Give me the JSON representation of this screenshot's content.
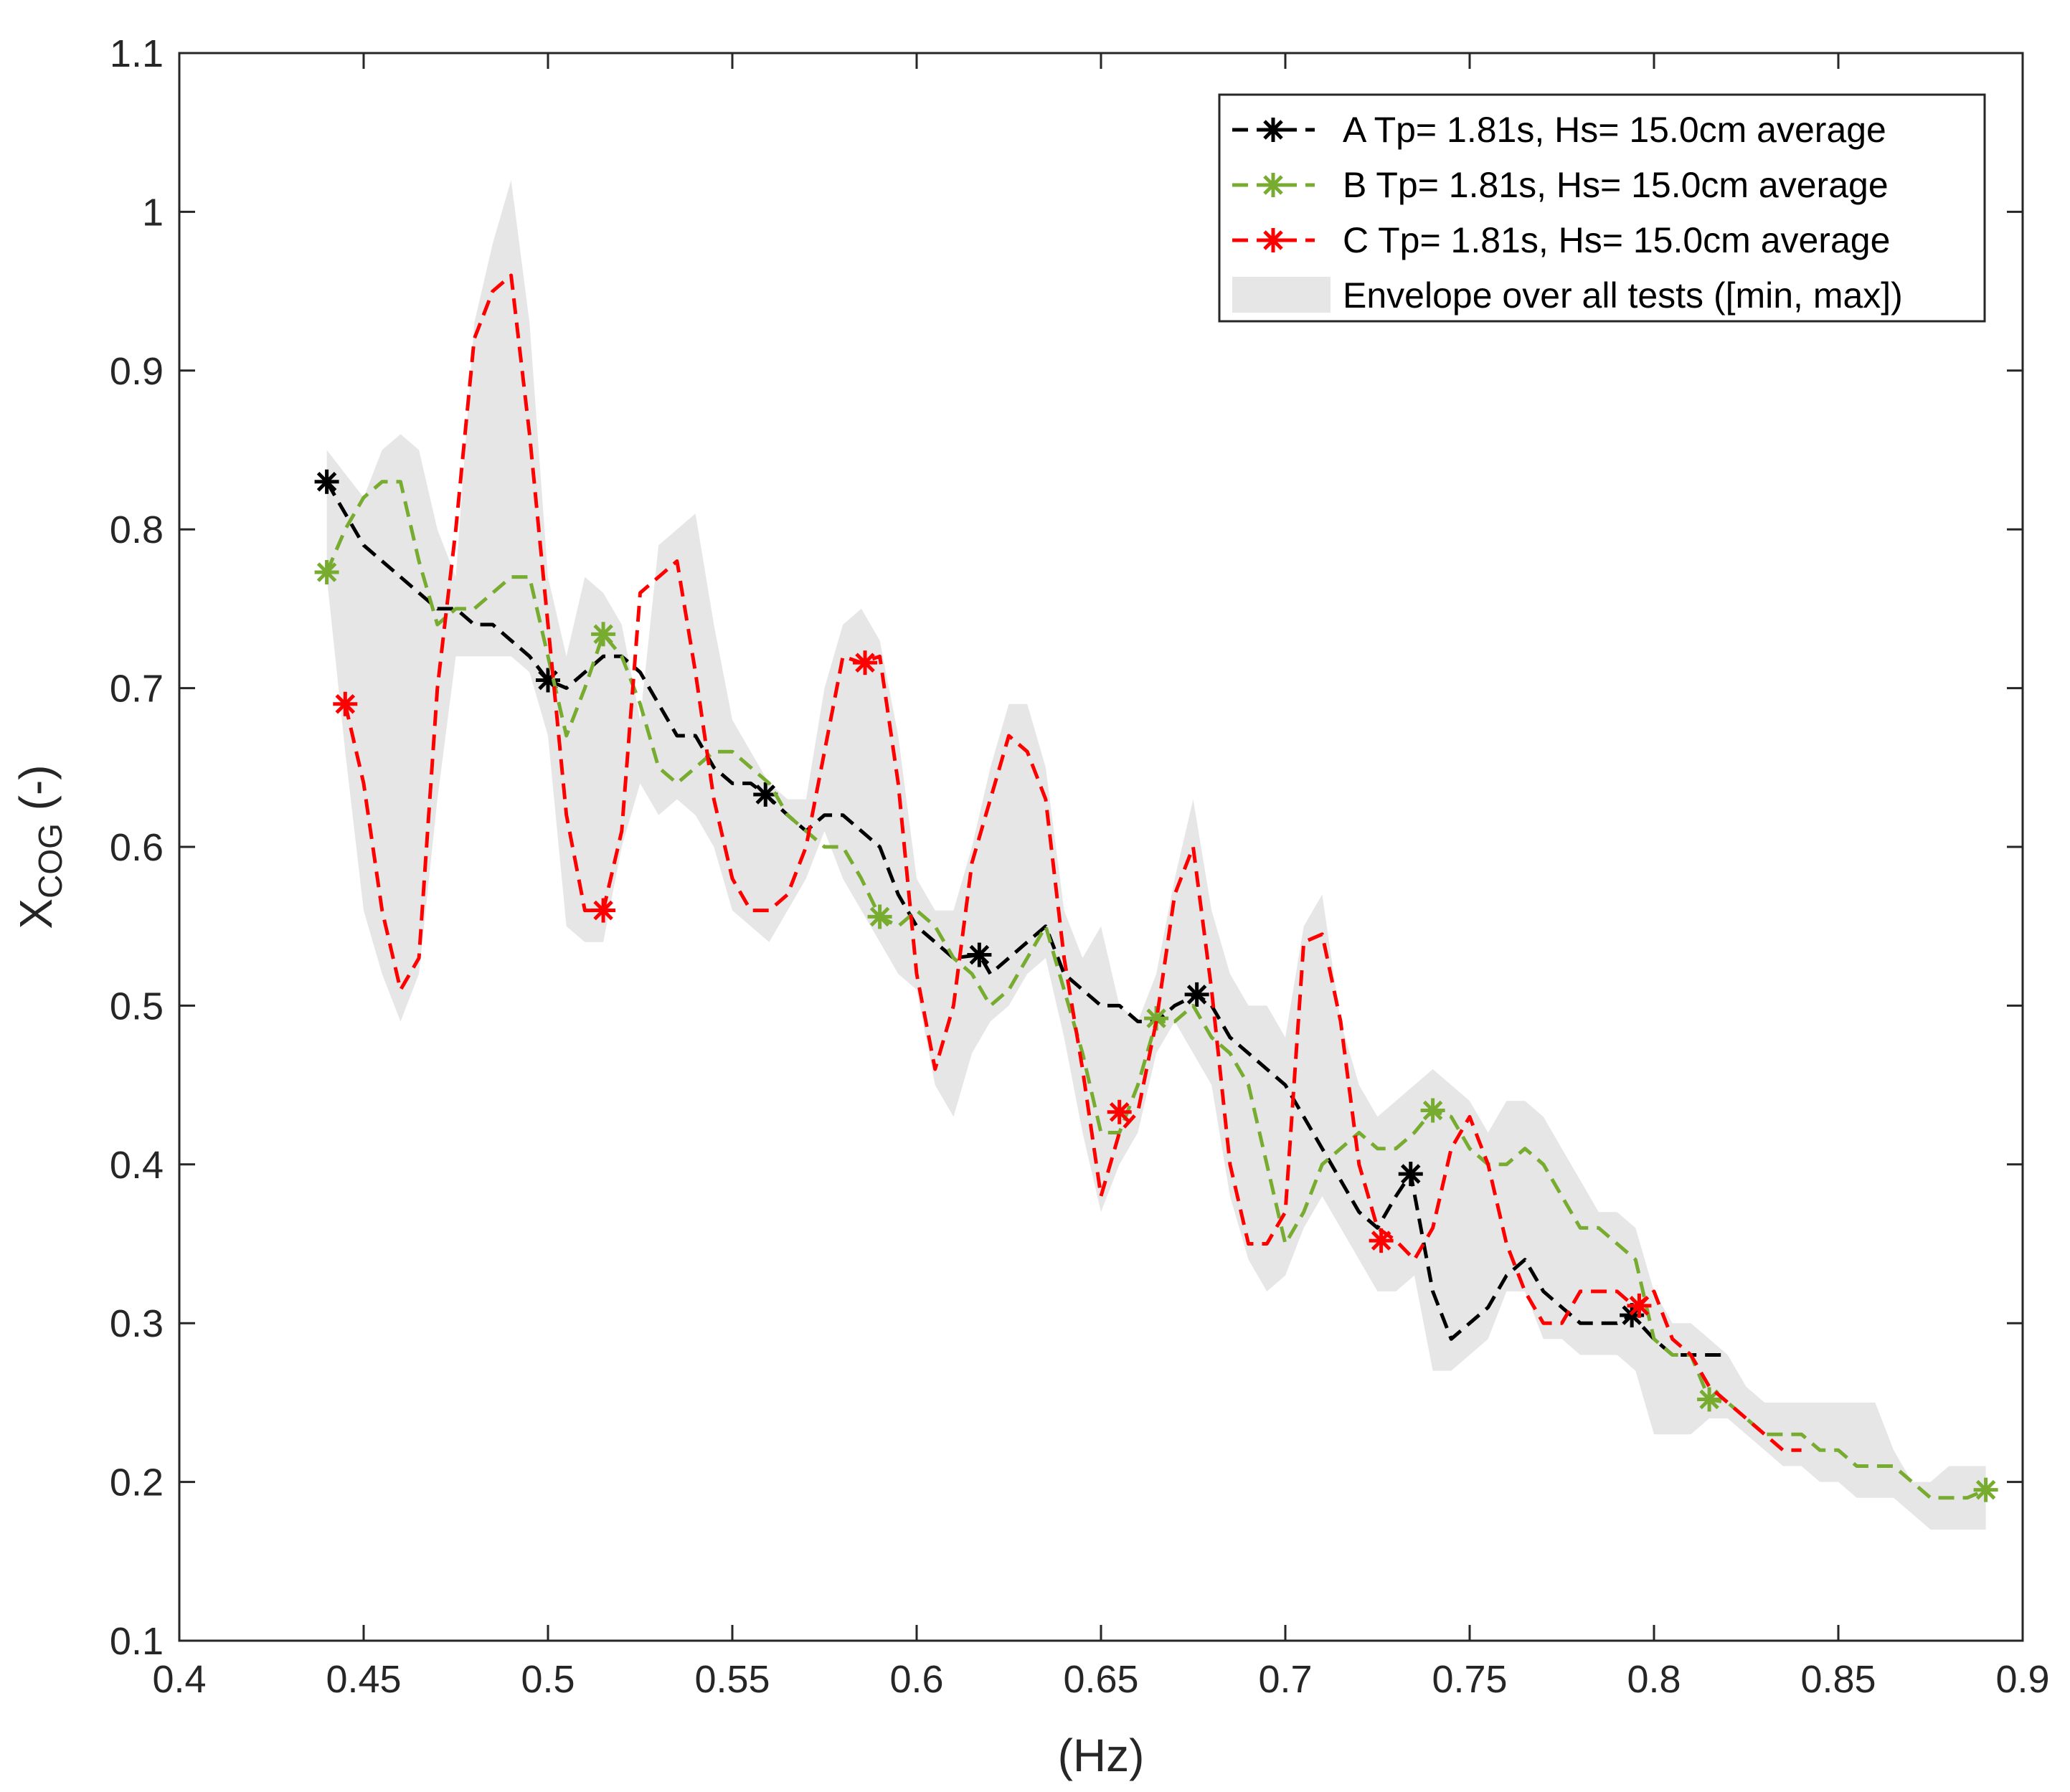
{
  "chart_data": {
    "type": "line",
    "title": "",
    "xlabel": "(Hz)",
    "ylabel_main": "X",
    "ylabel_sub": "COG",
    "ylabel_suffix": " (-)",
    "xlim": [
      0.4,
      0.9
    ],
    "ylim": [
      0.1,
      1.1
    ],
    "xticks": [
      "0.4",
      "0.45",
      "0.5",
      "0.55",
      "0.6",
      "0.65",
      "0.7",
      "0.75",
      "0.8",
      "0.85",
      "0.9"
    ],
    "yticks": [
      "0.1",
      "0.2",
      "0.3",
      "0.4",
      "0.5",
      "0.6",
      "0.7",
      "0.8",
      "0.9",
      "1",
      "1.1"
    ],
    "legend_position": "top-right",
    "envelope": {
      "name": "Envelope over all tests ([min, max])",
      "color": "#e6e6e6",
      "upper": [
        [
          0.44,
          0.85
        ],
        [
          0.45,
          0.82
        ],
        [
          0.455,
          0.85
        ],
        [
          0.46,
          0.86
        ],
        [
          0.465,
          0.85
        ],
        [
          0.47,
          0.8
        ],
        [
          0.475,
          0.77
        ],
        [
          0.48,
          0.93
        ],
        [
          0.485,
          0.98
        ],
        [
          0.49,
          1.02
        ],
        [
          0.495,
          0.93
        ],
        [
          0.5,
          0.77
        ],
        [
          0.505,
          0.72
        ],
        [
          0.51,
          0.77
        ],
        [
          0.515,
          0.76
        ],
        [
          0.52,
          0.74
        ],
        [
          0.525,
          0.68
        ],
        [
          0.53,
          0.79
        ],
        [
          0.535,
          0.8
        ],
        [
          0.54,
          0.81
        ],
        [
          0.545,
          0.74
        ],
        [
          0.55,
          0.68
        ],
        [
          0.555,
          0.66
        ],
        [
          0.56,
          0.64
        ],
        [
          0.565,
          0.63
        ],
        [
          0.57,
          0.63
        ],
        [
          0.575,
          0.7
        ],
        [
          0.58,
          0.74
        ],
        [
          0.585,
          0.75
        ],
        [
          0.59,
          0.73
        ],
        [
          0.595,
          0.67
        ],
        [
          0.6,
          0.58
        ],
        [
          0.605,
          0.56
        ],
        [
          0.61,
          0.56
        ],
        [
          0.615,
          0.6
        ],
        [
          0.62,
          0.65
        ],
        [
          0.625,
          0.69
        ],
        [
          0.63,
          0.69
        ],
        [
          0.635,
          0.65
        ],
        [
          0.64,
          0.56
        ],
        [
          0.645,
          0.53
        ],
        [
          0.65,
          0.55
        ],
        [
          0.655,
          0.5
        ],
        [
          0.66,
          0.49
        ],
        [
          0.665,
          0.52
        ],
        [
          0.67,
          0.58
        ],
        [
          0.675,
          0.63
        ],
        [
          0.68,
          0.56
        ],
        [
          0.685,
          0.52
        ],
        [
          0.69,
          0.5
        ],
        [
          0.695,
          0.5
        ],
        [
          0.7,
          0.48
        ],
        [
          0.705,
          0.55
        ],
        [
          0.71,
          0.57
        ],
        [
          0.715,
          0.49
        ],
        [
          0.72,
          0.45
        ],
        [
          0.725,
          0.43
        ],
        [
          0.73,
          0.44
        ],
        [
          0.735,
          0.45
        ],
        [
          0.74,
          0.46
        ],
        [
          0.745,
          0.45
        ],
        [
          0.75,
          0.44
        ],
        [
          0.755,
          0.42
        ],
        [
          0.76,
          0.44
        ],
        [
          0.765,
          0.44
        ],
        [
          0.77,
          0.43
        ],
        [
          0.775,
          0.41
        ],
        [
          0.78,
          0.39
        ],
        [
          0.785,
          0.37
        ],
        [
          0.79,
          0.37
        ],
        [
          0.795,
          0.36
        ],
        [
          0.8,
          0.32
        ],
        [
          0.805,
          0.3
        ],
        [
          0.81,
          0.3
        ],
        [
          0.815,
          0.29
        ],
        [
          0.82,
          0.28
        ],
        [
          0.825,
          0.26
        ],
        [
          0.83,
          0.25
        ],
        [
          0.835,
          0.25
        ],
        [
          0.84,
          0.25
        ],
        [
          0.845,
          0.25
        ],
        [
          0.85,
          0.25
        ],
        [
          0.855,
          0.25
        ],
        [
          0.86,
          0.25
        ],
        [
          0.865,
          0.22
        ],
        [
          0.87,
          0.2
        ],
        [
          0.875,
          0.2
        ],
        [
          0.88,
          0.21
        ],
        [
          0.885,
          0.21
        ],
        [
          0.89,
          0.21
        ]
      ],
      "lower": [
        [
          0.44,
          0.77
        ],
        [
          0.445,
          0.66
        ],
        [
          0.45,
          0.56
        ],
        [
          0.455,
          0.52
        ],
        [
          0.46,
          0.49
        ],
        [
          0.465,
          0.52
        ],
        [
          0.47,
          0.63
        ],
        [
          0.475,
          0.72
        ],
        [
          0.48,
          0.72
        ],
        [
          0.485,
          0.72
        ],
        [
          0.49,
          0.72
        ],
        [
          0.495,
          0.71
        ],
        [
          0.5,
          0.67
        ],
        [
          0.505,
          0.55
        ],
        [
          0.51,
          0.54
        ],
        [
          0.515,
          0.54
        ],
        [
          0.52,
          0.6
        ],
        [
          0.525,
          0.64
        ],
        [
          0.53,
          0.62
        ],
        [
          0.535,
          0.63
        ],
        [
          0.54,
          0.62
        ],
        [
          0.545,
          0.6
        ],
        [
          0.55,
          0.56
        ],
        [
          0.555,
          0.55
        ],
        [
          0.56,
          0.54
        ],
        [
          0.565,
          0.56
        ],
        [
          0.57,
          0.58
        ],
        [
          0.575,
          0.61
        ],
        [
          0.58,
          0.58
        ],
        [
          0.585,
          0.56
        ],
        [
          0.59,
          0.54
        ],
        [
          0.595,
          0.52
        ],
        [
          0.6,
          0.51
        ],
        [
          0.605,
          0.45
        ],
        [
          0.61,
          0.43
        ],
        [
          0.615,
          0.47
        ],
        [
          0.62,
          0.49
        ],
        [
          0.625,
          0.5
        ],
        [
          0.63,
          0.52
        ],
        [
          0.635,
          0.53
        ],
        [
          0.64,
          0.48
        ],
        [
          0.645,
          0.42
        ],
        [
          0.65,
          0.37
        ],
        [
          0.655,
          0.4
        ],
        [
          0.66,
          0.42
        ],
        [
          0.665,
          0.47
        ],
        [
          0.67,
          0.49
        ],
        [
          0.675,
          0.47
        ],
        [
          0.68,
          0.45
        ],
        [
          0.685,
          0.38
        ],
        [
          0.69,
          0.34
        ],
        [
          0.695,
          0.32
        ],
        [
          0.7,
          0.33
        ],
        [
          0.705,
          0.36
        ],
        [
          0.71,
          0.38
        ],
        [
          0.715,
          0.36
        ],
        [
          0.72,
          0.34
        ],
        [
          0.725,
          0.32
        ],
        [
          0.73,
          0.32
        ],
        [
          0.735,
          0.33
        ],
        [
          0.74,
          0.27
        ],
        [
          0.745,
          0.27
        ],
        [
          0.75,
          0.28
        ],
        [
          0.755,
          0.29
        ],
        [
          0.76,
          0.32
        ],
        [
          0.765,
          0.32
        ],
        [
          0.77,
          0.29
        ],
        [
          0.775,
          0.29
        ],
        [
          0.78,
          0.28
        ],
        [
          0.785,
          0.28
        ],
        [
          0.79,
          0.28
        ],
        [
          0.795,
          0.27
        ],
        [
          0.8,
          0.23
        ],
        [
          0.805,
          0.23
        ],
        [
          0.81,
          0.23
        ],
        [
          0.815,
          0.24
        ],
        [
          0.82,
          0.24
        ],
        [
          0.825,
          0.23
        ],
        [
          0.83,
          0.22
        ],
        [
          0.835,
          0.21
        ],
        [
          0.84,
          0.21
        ],
        [
          0.845,
          0.2
        ],
        [
          0.85,
          0.2
        ],
        [
          0.855,
          0.19
        ],
        [
          0.86,
          0.19
        ],
        [
          0.865,
          0.19
        ],
        [
          0.87,
          0.18
        ],
        [
          0.875,
          0.17
        ],
        [
          0.88,
          0.17
        ],
        [
          0.885,
          0.17
        ],
        [
          0.89,
          0.17
        ]
      ]
    },
    "series": [
      {
        "name": "A Tp= 1.81s, Hs= 15.0cm average",
        "color": "#000000",
        "x": [
          0.44,
          0.445,
          0.45,
          0.455,
          0.46,
          0.465,
          0.47,
          0.475,
          0.48,
          0.485,
          0.49,
          0.495,
          0.5,
          0.505,
          0.51,
          0.515,
          0.52,
          0.525,
          0.53,
          0.535,
          0.54,
          0.545,
          0.55,
          0.555,
          0.559,
          0.565,
          0.57,
          0.575,
          0.58,
          0.585,
          0.59,
          0.595,
          0.6,
          0.605,
          0.61,
          0.617,
          0.62,
          0.625,
          0.63,
          0.635,
          0.64,
          0.645,
          0.65,
          0.655,
          0.66,
          0.665,
          0.67,
          0.676,
          0.68,
          0.685,
          0.69,
          0.695,
          0.7,
          0.705,
          0.71,
          0.715,
          0.72,
          0.725,
          0.73,
          0.734,
          0.74,
          0.745,
          0.75,
          0.755,
          0.76,
          0.765,
          0.77,
          0.775,
          0.78,
          0.785,
          0.79,
          0.794,
          0.8,
          0.805,
          0.81,
          0.815,
          0.82
        ],
        "y": [
          0.83,
          0.81,
          0.79,
          0.78,
          0.77,
          0.76,
          0.75,
          0.75,
          0.74,
          0.74,
          0.73,
          0.72,
          0.705,
          0.7,
          0.71,
          0.72,
          0.72,
          0.71,
          0.69,
          0.67,
          0.67,
          0.65,
          0.64,
          0.64,
          0.633,
          0.62,
          0.61,
          0.62,
          0.62,
          0.61,
          0.6,
          0.57,
          0.55,
          0.54,
          0.53,
          0.532,
          0.52,
          0.53,
          0.54,
          0.55,
          0.52,
          0.51,
          0.5,
          0.5,
          0.49,
          0.49,
          0.5,
          0.507,
          0.5,
          0.48,
          0.47,
          0.46,
          0.45,
          0.43,
          0.41,
          0.39,
          0.37,
          0.36,
          0.38,
          0.394,
          0.32,
          0.29,
          0.3,
          0.31,
          0.33,
          0.34,
          0.32,
          0.31,
          0.3,
          0.3,
          0.3,
          0.305,
          0.29,
          0.28,
          0.28,
          0.28,
          0.28
        ],
        "markers_x": [
          0.44,
          0.5,
          0.559,
          0.617,
          0.676,
          0.734,
          0.794
        ],
        "markers_y": [
          0.83,
          0.705,
          0.633,
          0.532,
          0.507,
          0.394,
          0.305
        ]
      },
      {
        "name": "B Tp= 1.81s, Hs= 15.0cm average",
        "color": "#77ac30",
        "x": [
          0.44,
          0.445,
          0.45,
          0.455,
          0.46,
          0.465,
          0.47,
          0.475,
          0.48,
          0.485,
          0.49,
          0.495,
          0.5,
          0.505,
          0.51,
          0.515,
          0.52,
          0.525,
          0.53,
          0.535,
          0.54,
          0.545,
          0.55,
          0.555,
          0.56,
          0.565,
          0.57,
          0.575,
          0.58,
          0.585,
          0.59,
          0.595,
          0.6,
          0.605,
          0.61,
          0.615,
          0.62,
          0.625,
          0.63,
          0.635,
          0.64,
          0.645,
          0.65,
          0.655,
          0.66,
          0.665,
          0.67,
          0.675,
          0.68,
          0.685,
          0.69,
          0.695,
          0.7,
          0.705,
          0.71,
          0.715,
          0.72,
          0.725,
          0.73,
          0.735,
          0.74,
          0.745,
          0.75,
          0.755,
          0.76,
          0.765,
          0.77,
          0.775,
          0.78,
          0.785,
          0.79,
          0.795,
          0.8,
          0.805,
          0.81,
          0.815,
          0.82,
          0.825,
          0.83,
          0.835,
          0.84,
          0.845,
          0.85,
          0.855,
          0.86,
          0.865,
          0.87,
          0.875,
          0.88,
          0.885,
          0.89
        ],
        "y": [
          0.773,
          0.8,
          0.82,
          0.83,
          0.83,
          0.78,
          0.74,
          0.75,
          0.75,
          0.76,
          0.77,
          0.77,
          0.72,
          0.67,
          0.7,
          0.734,
          0.72,
          0.69,
          0.65,
          0.64,
          0.65,
          0.66,
          0.66,
          0.65,
          0.64,
          0.62,
          0.61,
          0.6,
          0.6,
          0.58,
          0.556,
          0.55,
          0.56,
          0.55,
          0.53,
          0.52,
          0.5,
          0.51,
          0.53,
          0.55,
          0.51,
          0.47,
          0.42,
          0.42,
          0.45,
          0.49,
          0.49,
          0.5,
          0.48,
          0.47,
          0.45,
          0.4,
          0.35,
          0.37,
          0.4,
          0.41,
          0.42,
          0.41,
          0.41,
          0.42,
          0.434,
          0.43,
          0.41,
          0.4,
          0.4,
          0.41,
          0.4,
          0.38,
          0.36,
          0.36,
          0.35,
          0.34,
          0.29,
          0.28,
          0.28,
          0.252,
          0.25,
          0.24,
          0.23,
          0.23,
          0.23,
          0.22,
          0.22,
          0.21,
          0.21,
          0.21,
          0.2,
          0.19,
          0.19,
          0.19,
          0.195
        ],
        "markers_x": [
          0.44,
          0.515,
          0.59,
          0.665,
          0.74,
          0.815,
          0.89
        ],
        "markers_y": [
          0.773,
          0.734,
          0.556,
          0.492,
          0.434,
          0.252,
          0.195
        ]
      },
      {
        "name": "C Tp= 1.81s, Hs= 15.0cm average",
        "color": "#ff0000",
        "x": [
          0.445,
          0.45,
          0.455,
          0.46,
          0.465,
          0.47,
          0.475,
          0.48,
          0.485,
          0.49,
          0.495,
          0.5,
          0.505,
          0.51,
          0.515,
          0.52,
          0.525,
          0.53,
          0.535,
          0.54,
          0.545,
          0.55,
          0.555,
          0.56,
          0.565,
          0.57,
          0.575,
          0.58,
          0.585,
          0.59,
          0.595,
          0.6,
          0.605,
          0.61,
          0.615,
          0.62,
          0.625,
          0.63,
          0.635,
          0.64,
          0.645,
          0.65,
          0.655,
          0.66,
          0.665,
          0.67,
          0.675,
          0.68,
          0.685,
          0.69,
          0.695,
          0.7,
          0.705,
          0.71,
          0.715,
          0.72,
          0.725,
          0.73,
          0.735,
          0.74,
          0.745,
          0.75,
          0.755,
          0.76,
          0.765,
          0.77,
          0.775,
          0.78,
          0.785,
          0.79,
          0.795,
          0.8,
          0.805,
          0.81,
          0.815,
          0.82,
          0.825,
          0.83,
          0.835,
          0.84
        ],
        "y": [
          0.69,
          0.64,
          0.56,
          0.51,
          0.53,
          0.7,
          0.8,
          0.92,
          0.95,
          0.96,
          0.86,
          0.74,
          0.62,
          0.56,
          0.56,
          0.61,
          0.76,
          0.77,
          0.78,
          0.71,
          0.63,
          0.58,
          0.56,
          0.56,
          0.57,
          0.6,
          0.66,
          0.72,
          0.716,
          0.72,
          0.64,
          0.52,
          0.46,
          0.5,
          0.59,
          0.63,
          0.67,
          0.66,
          0.63,
          0.53,
          0.46,
          0.38,
          0.42,
          0.433,
          0.49,
          0.57,
          0.6,
          0.51,
          0.4,
          0.35,
          0.35,
          0.37,
          0.54,
          0.545,
          0.49,
          0.4,
          0.36,
          0.352,
          0.34,
          0.36,
          0.41,
          0.43,
          0.4,
          0.35,
          0.32,
          0.3,
          0.3,
          0.32,
          0.32,
          0.32,
          0.31,
          0.32,
          0.29,
          0.28,
          0.26,
          0.25,
          0.24,
          0.23,
          0.22,
          0.22
        ],
        "markers_x": [
          0.445,
          0.515,
          0.586,
          0.655,
          0.726,
          0.796
        ],
        "markers_y": [
          0.69,
          0.56,
          0.716,
          0.433,
          0.352,
          0.311
        ]
      }
    ]
  }
}
